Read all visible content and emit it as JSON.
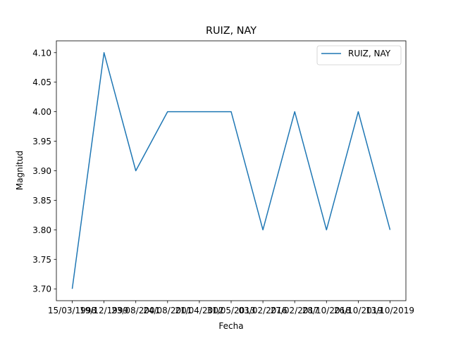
{
  "chart_data": {
    "type": "line",
    "title": "RUIZ, NAY",
    "xlabel": "Fecha",
    "ylabel": "Magnitud",
    "categories": [
      "15/03/1998",
      "19/12/1999",
      "23/08/2001",
      "24/08/2001",
      "21/04/2002",
      "31/05/2013",
      "03/02/2016",
      "27/02/2017",
      "28/10/2018",
      "26/10/2019",
      "13/10/2019"
    ],
    "tick_labels": [
      "15/03/1998",
      "19/12/1999",
      "23/08/2001",
      "24/08/2001",
      "21/04/2002",
      "31/05/2013",
      "03/02/2016",
      "27/02/2017",
      "28/10/2018",
      "26/10/2019",
      "13/10/2019"
    ],
    "series": [
      {
        "name": "RUIZ, NAY",
        "color": "#1f77b4",
        "values": [
          3.7,
          4.1,
          3.9,
          4.0,
          4.0,
          4.0,
          3.8,
          4.0,
          3.8,
          4.0,
          3.8
        ]
      }
    ],
    "ylim": [
      3.68,
      4.12
    ],
    "yticks": [
      "3.70",
      "3.75",
      "3.80",
      "3.85",
      "3.90",
      "3.95",
      "4.00",
      "4.05",
      "4.10"
    ],
    "grid": false,
    "legend": "top-right"
  }
}
